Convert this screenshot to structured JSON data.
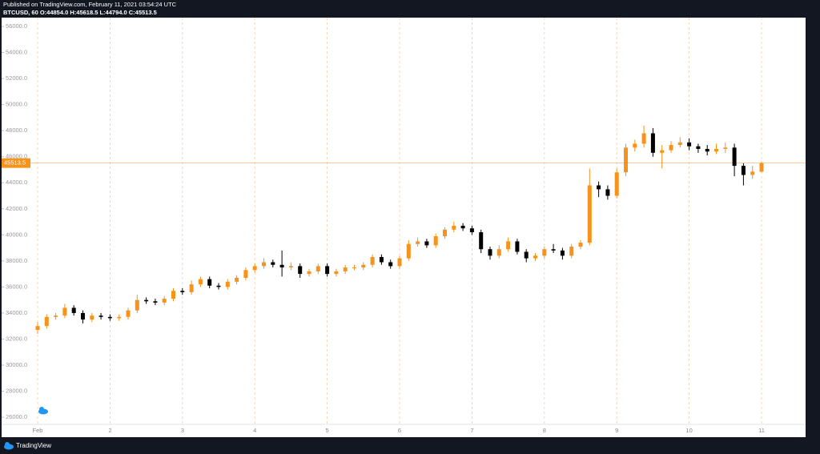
{
  "chart_data": {
    "type": "candlestick",
    "title": "Published on TradingView.com, February 11, 2021 03:54:24 UTC",
    "subtitle": "BTCUSD, 60  O:44854.0  H:45618.5  L:44794.0  C:45513.5",
    "source": "TradingView",
    "categories": [
      "Feb",
      null,
      null,
      null,
      null,
      null,
      null,
      null,
      "2",
      null,
      null,
      null,
      null,
      null,
      null,
      null,
      "3",
      null,
      null,
      null,
      null,
      null,
      null,
      null,
      "4",
      null,
      null,
      null,
      null,
      null,
      null,
      null,
      "5",
      null,
      null,
      null,
      null,
      null,
      null,
      null,
      "6",
      null,
      null,
      null,
      null,
      null,
      null,
      null,
      "7",
      null,
      null,
      null,
      null,
      null,
      null,
      null,
      "8",
      null,
      null,
      null,
      null,
      null,
      null,
      null,
      "9",
      null,
      null,
      null,
      null,
      null,
      null,
      null,
      "10",
      null,
      null,
      null,
      null,
      null,
      null,
      null,
      "11"
    ],
    "open": [
      32700,
      33000,
      33700,
      33800,
      34400,
      34000,
      33500,
      33800,
      33700,
      33600,
      33700,
      34200,
      35000,
      34900,
      34800,
      35100,
      35700,
      35600,
      36200,
      36600,
      36100,
      36000,
      36400,
      36700,
      37300,
      37600,
      37900,
      37700,
      37500,
      37600,
      37000,
      37200,
      37600,
      37000,
      37200,
      37500,
      37500,
      37700,
      38300,
      37900,
      37600,
      38200,
      39300,
      39500,
      39200,
      39900,
      40400,
      40700,
      40500,
      40200,
      38900,
      38400,
      38900,
      39500,
      38700,
      38200,
      38400,
      38900,
      38800,
      38400,
      39100,
      39400,
      43800,
      43500,
      43000,
      44800,
      46700,
      47000,
      47800,
      46300,
      46500,
      46900,
      47100,
      46800,
      46600,
      46400,
      46600,
      46700,
      45300,
      44600,
      44854
    ],
    "high": [
      33300,
      33900,
      34000,
      34700,
      34600,
      34200,
      34000,
      34000,
      33900,
      33900,
      34400,
      35400,
      35200,
      35100,
      35300,
      35900,
      35900,
      36500,
      36800,
      36800,
      36300,
      36600,
      36900,
      37500,
      37800,
      38200,
      38100,
      38800,
      37900,
      37800,
      37400,
      37800,
      37800,
      37400,
      37700,
      37700,
      37900,
      38500,
      38500,
      38100,
      38400,
      39600,
      39800,
      39700,
      40100,
      40600,
      41000,
      40900,
      40700,
      40400,
      39100,
      39200,
      39800,
      39700,
      38900,
      38600,
      39100,
      39300,
      39000,
      39300,
      39600,
      45100,
      44100,
      43800,
      45100,
      47000,
      47300,
      48400,
      48200,
      46900,
      47200,
      47500,
      47400,
      47000,
      46900,
      47000,
      47100,
      47000,
      45500,
      45300,
      45618.5
    ],
    "low": [
      32400,
      32800,
      33500,
      33600,
      33800,
      33200,
      33300,
      33500,
      33400,
      33400,
      33500,
      34000,
      34700,
      34600,
      34600,
      34900,
      35400,
      35400,
      36000,
      35900,
      35800,
      35800,
      36200,
      36500,
      37100,
      37400,
      37500,
      36800,
      37300,
      36700,
      36800,
      37000,
      36800,
      36800,
      37000,
      37300,
      37300,
      37500,
      37700,
      37400,
      37400,
      38000,
      39100,
      39000,
      39000,
      39700,
      40200,
      40300,
      40000,
      38600,
      38100,
      38200,
      38700,
      38500,
      37900,
      38000,
      38200,
      38600,
      38100,
      38200,
      38900,
      39200,
      42900,
      42700,
      42800,
      44500,
      46400,
      46700,
      46000,
      45100,
      46300,
      46700,
      46500,
      46300,
      46100,
      46200,
      46300,
      44500,
      43800,
      44300,
      44794
    ],
    "close": [
      33000,
      33700,
      33800,
      34400,
      34000,
      33500,
      33800,
      33700,
      33600,
      33700,
      34200,
      35000,
      34900,
      34800,
      35100,
      35700,
      35600,
      36200,
      36600,
      36100,
      36000,
      36400,
      36700,
      37300,
      37600,
      37900,
      37700,
      37500,
      37600,
      37000,
      37200,
      37600,
      37000,
      37200,
      37500,
      37500,
      37700,
      38300,
      37900,
      37600,
      38200,
      39300,
      39500,
      39200,
      39900,
      40400,
      40700,
      40500,
      40200,
      38900,
      38400,
      38900,
      39500,
      38700,
      38200,
      38400,
      38900,
      38800,
      38400,
      39100,
      39400,
      43800,
      43500,
      43000,
      44800,
      46700,
      47000,
      47800,
      46300,
      46500,
      46900,
      47100,
      46800,
      46600,
      46400,
      46600,
      46700,
      45300,
      44600,
      44854,
      45513.5
    ],
    "up_color": "#f7931a",
    "down_color": "#000000",
    "last_price": 45513.5,
    "ylim": [
      25450,
      56680
    ],
    "yticks": [
      {
        "value": 26000,
        "label": "26000.0"
      },
      {
        "value": 28000,
        "label": "28000.0"
      },
      {
        "value": 30000,
        "label": "30000.0"
      },
      {
        "value": 32000,
        "label": "32000.0"
      },
      {
        "value": 34000,
        "label": "34000.0"
      },
      {
        "value": 36000,
        "label": "36000.0"
      },
      {
        "value": 38000,
        "label": "38000.0"
      },
      {
        "value": 40000,
        "label": "40000.0"
      },
      {
        "value": 42000,
        "label": "42000.0"
      },
      {
        "value": 44000,
        "label": "44000.0"
      },
      {
        "value": 46000,
        "label": "46000.0"
      },
      {
        "value": 48000,
        "label": "48000.0"
      },
      {
        "value": 50000,
        "label": "50000.0"
      },
      {
        "value": 52000,
        "label": "52000.0"
      },
      {
        "value": 54000,
        "label": "54000.0"
      },
      {
        "value": 56000,
        "label": "56000.0"
      }
    ],
    "grid": true
  }
}
